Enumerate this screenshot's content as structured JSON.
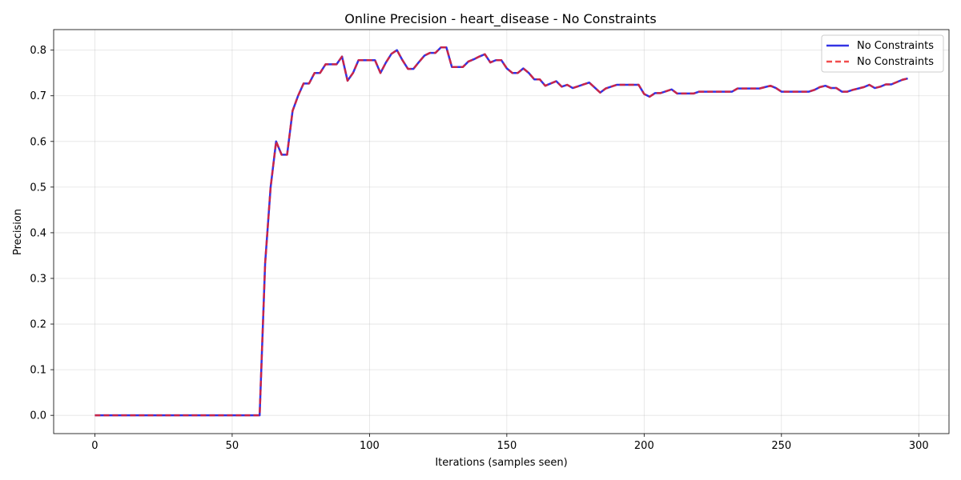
{
  "chart_data": {
    "type": "line",
    "title": "Online Precision - heart_disease - No Constraints",
    "xlabel": "Iterations (samples seen)",
    "ylabel": "Precision",
    "xlim": [
      -15,
      311
    ],
    "ylim": [
      -0.04,
      0.845
    ],
    "x_ticks": [
      0,
      50,
      100,
      150,
      200,
      250,
      300
    ],
    "x_tick_labels": [
      "0",
      "50",
      "100",
      "150",
      "200",
      "250",
      "300"
    ],
    "y_ticks": [
      0.0,
      0.1,
      0.2,
      0.3,
      0.4,
      0.5,
      0.6,
      0.7,
      0.8
    ],
    "y_tick_labels": [
      "0.0",
      "0.1",
      "0.2",
      "0.3",
      "0.4",
      "0.5",
      "0.6",
      "0.7",
      "0.8"
    ],
    "grid": true,
    "legend_position": "upper right",
    "series": [
      {
        "name": "No Constraints",
        "color": "#0000dd",
        "style": "solid",
        "x": [
          0,
          60,
          62,
          64,
          66,
          68,
          70,
          72,
          74,
          76,
          78,
          80,
          82,
          84,
          86,
          88,
          90,
          92,
          94,
          96,
          98,
          100,
          102,
          104,
          106,
          108,
          110,
          112,
          114,
          116,
          118,
          120,
          122,
          124,
          126,
          128,
          130,
          132,
          134,
          136,
          138,
          140,
          142,
          144,
          146,
          148,
          150,
          152,
          154,
          156,
          158,
          160,
          162,
          164,
          166,
          168,
          170,
          172,
          174,
          176,
          178,
          180,
          182,
          184,
          186,
          188,
          190,
          192,
          194,
          196,
          198,
          200,
          202,
          204,
          206,
          208,
          210,
          212,
          214,
          216,
          218,
          220,
          222,
          224,
          226,
          228,
          230,
          232,
          234,
          236,
          238,
          240,
          242,
          244,
          246,
          248,
          250,
          252,
          254,
          256,
          258,
          260,
          262,
          264,
          266,
          268,
          270,
          272,
          274,
          276,
          278,
          280,
          282,
          284,
          286,
          288,
          290,
          292,
          294,
          296
        ],
        "y": [
          0.0,
          0.0,
          0.333,
          0.5,
          0.6,
          0.571,
          0.571,
          0.667,
          0.7,
          0.727,
          0.727,
          0.75,
          0.75,
          0.769,
          0.769,
          0.769,
          0.786,
          0.733,
          0.75,
          0.778,
          0.778,
          0.778,
          0.778,
          0.75,
          0.773,
          0.792,
          0.8,
          0.778,
          0.759,
          0.759,
          0.774,
          0.788,
          0.794,
          0.794,
          0.806,
          0.806,
          0.763,
          0.763,
          0.763,
          0.775,
          0.78,
          0.786,
          0.791,
          0.773,
          0.778,
          0.778,
          0.76,
          0.75,
          0.75,
          0.76,
          0.75,
          0.736,
          0.736,
          0.722,
          0.727,
          0.732,
          0.72,
          0.724,
          0.717,
          0.721,
          0.725,
          0.729,
          0.718,
          0.707,
          0.716,
          0.72,
          0.724,
          0.724,
          0.724,
          0.724,
          0.724,
          0.704,
          0.698,
          0.706,
          0.706,
          0.71,
          0.714,
          0.705,
          0.705,
          0.705,
          0.705,
          0.709,
          0.709,
          0.709,
          0.709,
          0.709,
          0.709,
          0.709,
          0.716,
          0.716,
          0.716,
          0.716,
          0.716,
          0.719,
          0.722,
          0.717,
          0.709,
          0.709,
          0.709,
          0.709,
          0.709,
          0.709,
          0.713,
          0.719,
          0.722,
          0.717,
          0.717,
          0.709,
          0.709,
          0.713,
          0.716,
          0.719,
          0.724,
          0.717,
          0.72,
          0.725,
          0.725,
          0.73,
          0.735,
          0.738
        ]
      },
      {
        "name": "No Constraints",
        "color": "#ee2222",
        "style": "dashed",
        "x": [
          0,
          60,
          62,
          64,
          66,
          68,
          70,
          72,
          74,
          76,
          78,
          80,
          82,
          84,
          86,
          88,
          90,
          92,
          94,
          96,
          98,
          100,
          102,
          104,
          106,
          108,
          110,
          112,
          114,
          116,
          118,
          120,
          122,
          124,
          126,
          128,
          130,
          132,
          134,
          136,
          138,
          140,
          142,
          144,
          146,
          148,
          150,
          152,
          154,
          156,
          158,
          160,
          162,
          164,
          166,
          168,
          170,
          172,
          174,
          176,
          178,
          180,
          182,
          184,
          186,
          188,
          190,
          192,
          194,
          196,
          198,
          200,
          202,
          204,
          206,
          208,
          210,
          212,
          214,
          216,
          218,
          220,
          222,
          224,
          226,
          228,
          230,
          232,
          234,
          236,
          238,
          240,
          242,
          244,
          246,
          248,
          250,
          252,
          254,
          256,
          258,
          260,
          262,
          264,
          266,
          268,
          270,
          272,
          274,
          276,
          278,
          280,
          282,
          284,
          286,
          288,
          290,
          292,
          294,
          296
        ],
        "y": [
          0.0,
          0.0,
          0.333,
          0.5,
          0.6,
          0.571,
          0.571,
          0.667,
          0.7,
          0.727,
          0.727,
          0.75,
          0.75,
          0.769,
          0.769,
          0.769,
          0.786,
          0.733,
          0.75,
          0.778,
          0.778,
          0.778,
          0.778,
          0.75,
          0.773,
          0.792,
          0.8,
          0.778,
          0.759,
          0.759,
          0.774,
          0.788,
          0.794,
          0.794,
          0.806,
          0.806,
          0.763,
          0.763,
          0.763,
          0.775,
          0.78,
          0.786,
          0.791,
          0.773,
          0.778,
          0.778,
          0.76,
          0.75,
          0.75,
          0.76,
          0.75,
          0.736,
          0.736,
          0.722,
          0.727,
          0.732,
          0.72,
          0.724,
          0.717,
          0.721,
          0.725,
          0.729,
          0.718,
          0.707,
          0.716,
          0.72,
          0.724,
          0.724,
          0.724,
          0.724,
          0.724,
          0.704,
          0.698,
          0.706,
          0.706,
          0.71,
          0.714,
          0.705,
          0.705,
          0.705,
          0.705,
          0.709,
          0.709,
          0.709,
          0.709,
          0.709,
          0.709,
          0.709,
          0.716,
          0.716,
          0.716,
          0.716,
          0.716,
          0.719,
          0.722,
          0.717,
          0.709,
          0.709,
          0.709,
          0.709,
          0.709,
          0.709,
          0.713,
          0.719,
          0.722,
          0.717,
          0.717,
          0.709,
          0.709,
          0.713,
          0.716,
          0.719,
          0.724,
          0.717,
          0.72,
          0.725,
          0.725,
          0.73,
          0.735,
          0.738
        ]
      }
    ]
  }
}
